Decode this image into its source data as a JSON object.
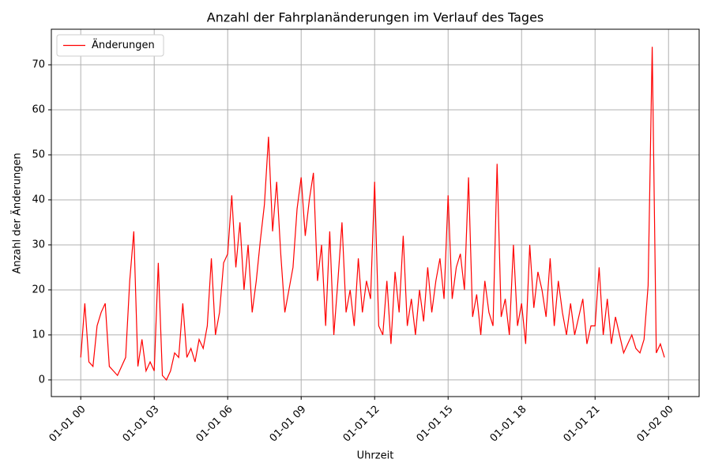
{
  "chart_data": {
    "type": "line",
    "title": "Anzahl der Fahrplanänderungen im Verlauf des Tages",
    "xlabel": "Uhrzeit",
    "ylabel": "Anzahl der Änderungen",
    "x": [
      0,
      10,
      20,
      30,
      40,
      50,
      60,
      70,
      80,
      90,
      100,
      110,
      120,
      130,
      140,
      150,
      160,
      170,
      180,
      190,
      200,
      210,
      220,
      230,
      240,
      250,
      260,
      270,
      280,
      290,
      300,
      310,
      320,
      330,
      340,
      350,
      360,
      370,
      380,
      390,
      400,
      410,
      420,
      430,
      440,
      450,
      460,
      470,
      480,
      490,
      500,
      510,
      520,
      530,
      540,
      550,
      560,
      570,
      580,
      590,
      600,
      610,
      620,
      630,
      640,
      650,
      660,
      670,
      680,
      690,
      700,
      710,
      720,
      730,
      740,
      750,
      760,
      770,
      780,
      790,
      800,
      810,
      820,
      830,
      840,
      850,
      860,
      870,
      880,
      890,
      900,
      910,
      920,
      930,
      940,
      950,
      960,
      970,
      980,
      990,
      1000,
      1010,
      1020,
      1030,
      1040,
      1050,
      1060,
      1070,
      1080,
      1090,
      1100,
      1110,
      1120,
      1130,
      1140,
      1150,
      1160,
      1170,
      1180,
      1190,
      1200,
      1210,
      1220,
      1230,
      1240,
      1250,
      1260,
      1270,
      1280,
      1290,
      1300,
      1310,
      1320,
      1330,
      1340,
      1350,
      1360,
      1370,
      1380,
      1390,
      1400,
      1410,
      1420,
      1430
    ],
    "series": [
      {
        "name": "Änderungen",
        "color": "#ff0000",
        "values": [
          5,
          17,
          4,
          3,
          12,
          15,
          17,
          3,
          2,
          1,
          3,
          5,
          22,
          33,
          3,
          9,
          2,
          4,
          2,
          26,
          1,
          0,
          2,
          6,
          5,
          17,
          5,
          7,
          4,
          9,
          7,
          12,
          27,
          10,
          15,
          26,
          28,
          41,
          25,
          35,
          20,
          30,
          15,
          22,
          31,
          39,
          54,
          33,
          44,
          28,
          15,
          20,
          25,
          38,
          45,
          32,
          40,
          46,
          22,
          30,
          12,
          33,
          10,
          22,
          35,
          15,
          20,
          12,
          27,
          15,
          22,
          18,
          44,
          12,
          10,
          22,
          8,
          24,
          15,
          32,
          12,
          18,
          10,
          20,
          13,
          25,
          15,
          22,
          27,
          18,
          41,
          18,
          25,
          28,
          20,
          45,
          14,
          19,
          10,
          22,
          15,
          12,
          48,
          14,
          18,
          10,
          30,
          12,
          17,
          8,
          30,
          16,
          24,
          20,
          14,
          27,
          12,
          22,
          15,
          10,
          17,
          10,
          14,
          18,
          8,
          12,
          12,
          25,
          10,
          18,
          8,
          14,
          10,
          6,
          8,
          10,
          7,
          6,
          9,
          21,
          74,
          6,
          8,
          5
        ]
      }
    ],
    "xlim": [
      -72,
      1515
    ],
    "xticks": [
      {
        "value": 0,
        "label": "01-01 00"
      },
      {
        "value": 180,
        "label": "01-01 03"
      },
      {
        "value": 360,
        "label": "01-01 06"
      },
      {
        "value": 540,
        "label": "01-01 09"
      },
      {
        "value": 720,
        "label": "01-01 12"
      },
      {
        "value": 900,
        "label": "01-01 15"
      },
      {
        "value": 1080,
        "label": "01-01 18"
      },
      {
        "value": 1260,
        "label": "01-01 21"
      },
      {
        "value": 1440,
        "label": "01-02 00"
      }
    ],
    "ylim": [
      -3.7,
      77.9
    ],
    "yticks": [
      0,
      10,
      20,
      30,
      40,
      50,
      60,
      70
    ],
    "grid": true,
    "legend": "upper left"
  }
}
